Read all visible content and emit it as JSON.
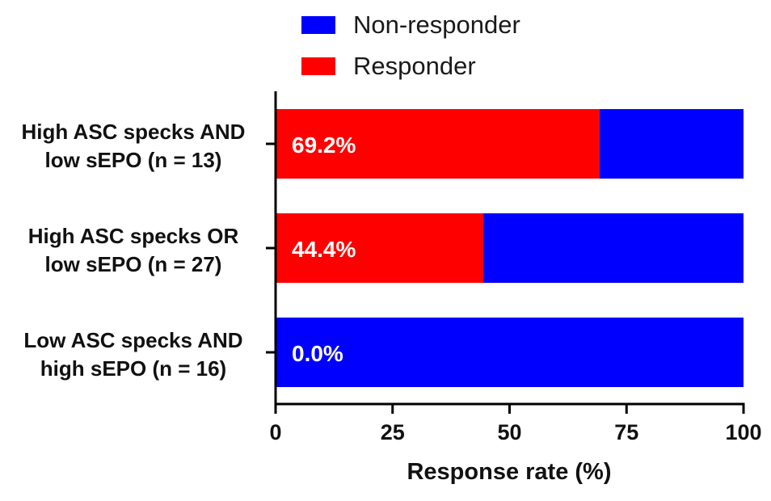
{
  "chart_data": {
    "type": "bar",
    "orientation": "horizontal",
    "stacked": true,
    "title": "",
    "xlabel": "Response rate (%)",
    "ylabel": "",
    "xlim": [
      0,
      100
    ],
    "x_ticks": [
      0,
      25,
      50,
      75,
      100
    ],
    "grid": false,
    "legend_position": "top",
    "categories": [
      {
        "line1": "High ASC specks AND",
        "line2": "low sEPO (n = 13)"
      },
      {
        "line1": "High ASC specks OR",
        "line2": "low sEPO (n = 27)"
      },
      {
        "line1": "Low ASC specks AND",
        "line2": "high sEPO (n = 16)"
      }
    ],
    "series": [
      {
        "name": "Responder",
        "color": "#ff0000",
        "values": [
          69.2,
          44.4,
          0.0
        ]
      },
      {
        "name": "Non-responder",
        "color": "#0000ff",
        "values": [
          30.8,
          55.6,
          100.0
        ]
      }
    ],
    "data_labels": [
      "69.2%",
      "44.4%",
      "0.0%"
    ]
  },
  "legend": {
    "items": [
      {
        "label": "Non-responder",
        "color": "#0000ff"
      },
      {
        "label": "Responder",
        "color": "#ff0000"
      }
    ]
  }
}
